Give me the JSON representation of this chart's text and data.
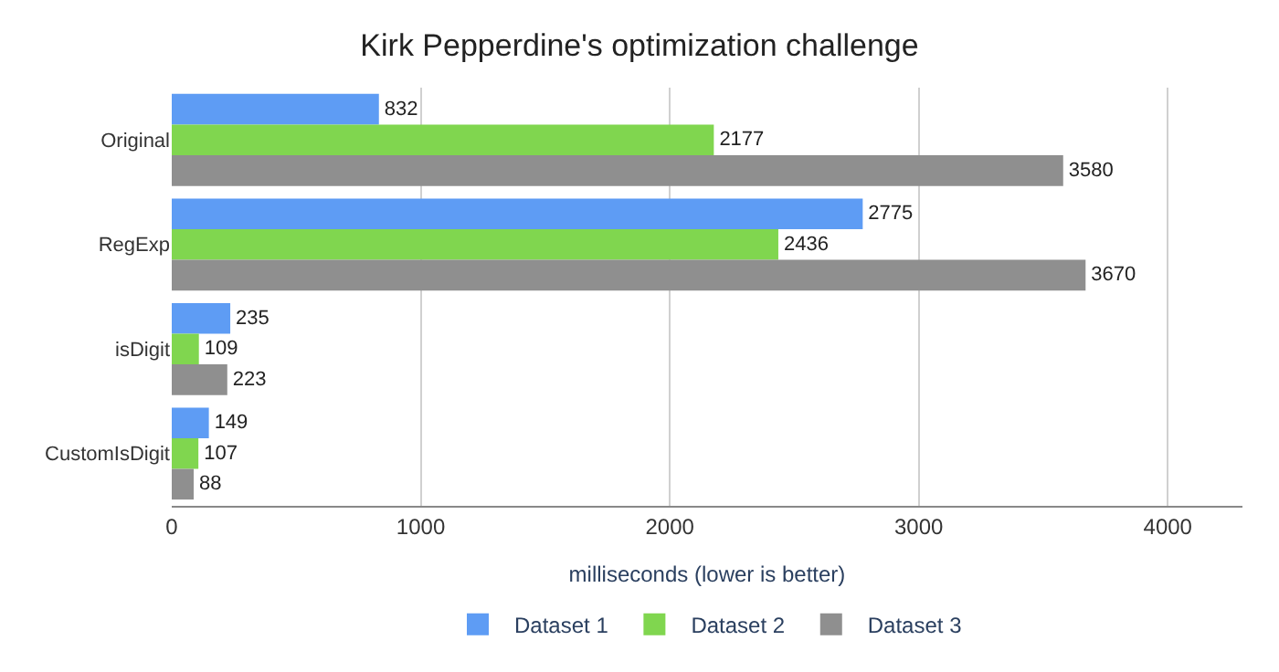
{
  "chart_data": {
    "type": "bar",
    "orientation": "horizontal",
    "title": "Kirk Pepperdine's optimization challenge",
    "xlabel": "milliseconds (lower is better)",
    "categories": [
      "Original",
      "RegExp",
      "isDigit",
      "CustomIsDigit"
    ],
    "series": [
      {
        "name": "Dataset 1",
        "color": "#5e9cf4",
        "values": [
          832,
          2775,
          235,
          149
        ]
      },
      {
        "name": "Dataset 2",
        "color": "#80d64f",
        "values": [
          2177,
          2436,
          109,
          107
        ]
      },
      {
        "name": "Dataset 3",
        "color": "#8f8f8f",
        "values": [
          3580,
          3670,
          223,
          88
        ]
      }
    ],
    "xlim": [
      0,
      4300
    ],
    "xticks": [
      0,
      1000,
      2000,
      3000,
      4000
    ],
    "grid": "x",
    "legend": "bottom",
    "data_labels": true
  }
}
